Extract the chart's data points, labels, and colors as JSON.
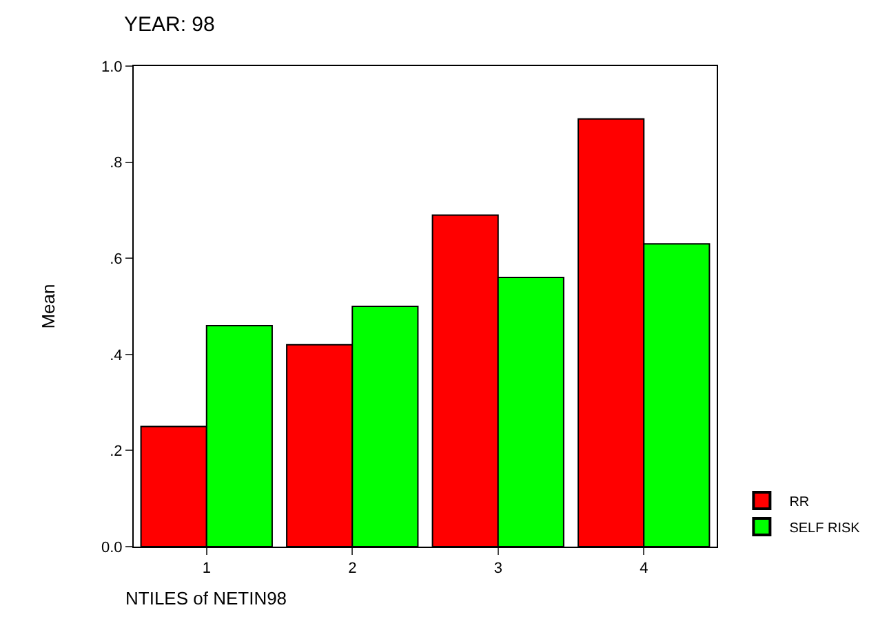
{
  "chart_data": {
    "type": "bar",
    "title": "YEAR: 98",
    "xlabel": "NTILES of NETIN98",
    "ylabel": "Mean",
    "categories": [
      "1",
      "2",
      "3",
      "4"
    ],
    "series": [
      {
        "name": "RR",
        "color": "#ff0000",
        "values": [
          0.25,
          0.42,
          0.69,
          0.89
        ]
      },
      {
        "name": "SELF RISK",
        "color": "#00ff00",
        "values": [
          0.46,
          0.5,
          0.56,
          0.63
        ]
      }
    ],
    "ylim": [
      0,
      1.0
    ],
    "yticks": [
      {
        "value": 0,
        "label": "0.0"
      },
      {
        "value": 0.2,
        "label": ".2"
      },
      {
        "value": 0.4,
        "label": ".4"
      },
      {
        "value": 0.6,
        "label": ".6"
      },
      {
        "value": 0.8,
        "label": ".8"
      },
      {
        "value": 1.0,
        "label": "1.0"
      }
    ],
    "legend": "bottom right"
  }
}
